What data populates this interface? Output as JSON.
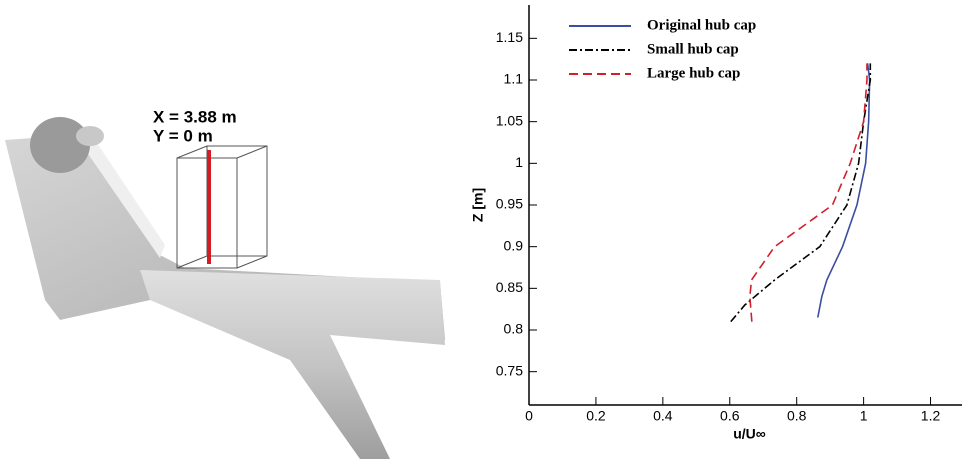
{
  "chart_data": {
    "type": "line",
    "annotations": [
      "X = 3.88 m",
      "Y = 0 m"
    ],
    "xlabel": "u/U∞",
    "ylabel": "Z [m]",
    "xlim": [
      0,
      1.3
    ],
    "xticks": [
      0,
      0.2,
      0.4,
      0.6,
      0.8,
      1,
      1.2
    ],
    "ylim": [
      0.71,
      1.19
    ],
    "yticks": [
      0.75,
      0.8,
      0.85,
      0.9,
      0.95,
      1,
      1.05,
      1.1,
      1.15
    ],
    "legend": "upper left",
    "series": [
      {
        "name": "Original hub cap",
        "color": "#3a4fa0",
        "dash": "solid",
        "u": [
          0.863,
          0.875,
          0.89,
          0.937,
          0.98,
          1.006,
          1.015,
          1.018,
          1.012
        ],
        "z": [
          0.815,
          0.84,
          0.86,
          0.9,
          0.95,
          1.0,
          1.05,
          1.1,
          1.12
        ]
      },
      {
        "name": "Small hub cap",
        "color": "#000000",
        "dash": "dashdot",
        "u": [
          0.603,
          0.645,
          0.734,
          0.869,
          0.95,
          0.985,
          1.0,
          1.02,
          1.02
        ],
        "z": [
          0.81,
          0.83,
          0.86,
          0.9,
          0.95,
          1.0,
          1.05,
          1.1,
          1.12
        ]
      },
      {
        "name": "Large hub cap",
        "color": "#d0202a",
        "dash": "dashed",
        "u": [
          0.666,
          0.66,
          0.665,
          0.734,
          0.907,
          0.96,
          1.0,
          1.01,
          1.01
        ],
        "z": [
          0.81,
          0.84,
          0.86,
          0.9,
          0.95,
          1.0,
          1.05,
          1.1,
          1.12
        ]
      }
    ]
  }
}
